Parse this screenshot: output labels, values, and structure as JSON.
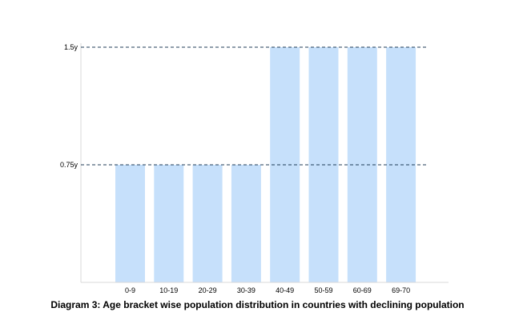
{
  "chart_data": {
    "type": "bar",
    "caption": "Diagram 3: Age bracket wise population distribution in countries with declining population",
    "categories": [
      "0-9",
      "10-19",
      "20-29",
      "30-39",
      "40-49",
      "50-59",
      "60-69",
      "69-70"
    ],
    "values": [
      0.75,
      0.75,
      0.75,
      0.75,
      1.5,
      1.5,
      1.5,
      1.5
    ],
    "y_ticks": [
      {
        "value": 0.75,
        "label": "0.75y"
      },
      {
        "value": 1.5,
        "label": "1.5y"
      }
    ],
    "ylim": [
      0,
      1.5
    ],
    "grid": "dashed reference lines at tick values",
    "legend": "none"
  },
  "colors": {
    "bar": "#c6e0fb",
    "gridline": "#1f3b57",
    "axis": "#d9d9d9"
  }
}
